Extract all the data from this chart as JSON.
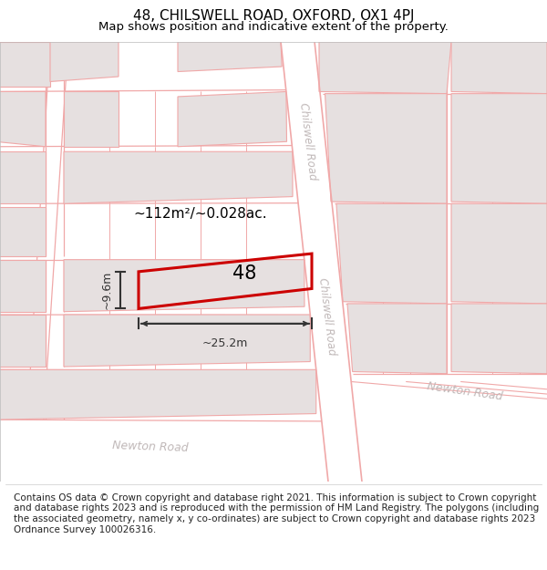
{
  "title_line1": "48, CHILSWELL ROAD, OXFORD, OX1 4PJ",
  "title_line2": "Map shows position and indicative extent of the property.",
  "footer_text": "Contains OS data © Crown copyright and database right 2021. This information is subject to Crown copyright and database rights 2023 and is reproduced with the permission of HM Land Registry. The polygons (including the associated geometry, namely x, y co-ordinates) are subject to Crown copyright and database rights 2023 Ordnance Survey 100026316.",
  "block_color": "#e6e0e0",
  "line_color": "#f0a8a8",
  "property_edge_color": "#cc0000",
  "road_label_color": "#c0b8b8",
  "dim_color": "#333333",
  "area_label": "~112m²/~0.028ac.",
  "dim_width": "~25.2m",
  "dim_height": "~9.6m",
  "title_fontsize": 11,
  "subtitle_fontsize": 9.5,
  "footer_fontsize": 7.5
}
